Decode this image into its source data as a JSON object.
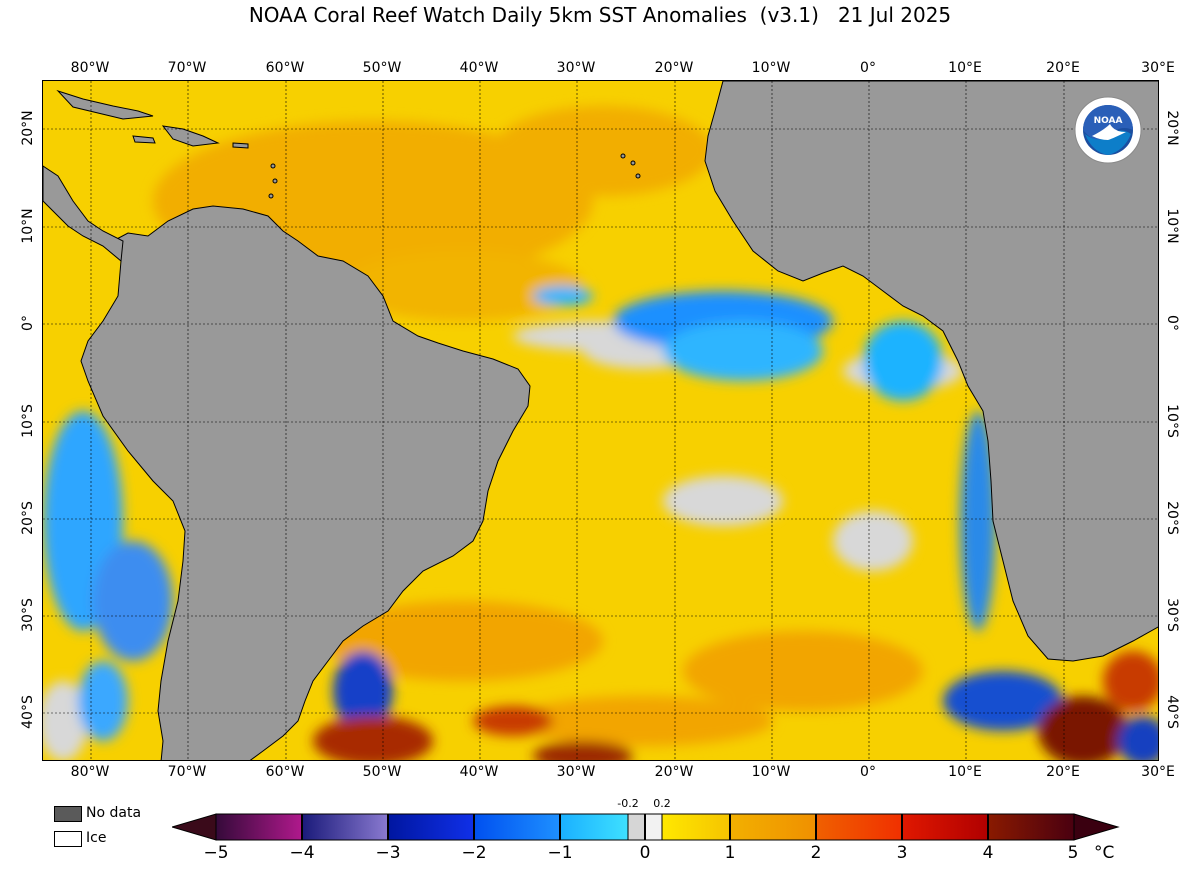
{
  "title": "NOAA Coral Reef Watch Daily 5km SST Anomalies  (v3.1)   21 Jul 2025",
  "longitude_labels": [
    "80°W",
    "70°W",
    "60°W",
    "50°W",
    "40°W",
    "30°W",
    "20°W",
    "10°W",
    "0°",
    "10°E",
    "20°E",
    "30°E"
  ],
  "latitude_labels": [
    "20°N",
    "10°N",
    "0°",
    "10°S",
    "20°S",
    "30°S",
    "40°S"
  ],
  "legend": {
    "no_data_label": "No data",
    "ice_label": "Ice",
    "no_data_color": "#5a5a5a",
    "ice_color": "#ffffff"
  },
  "colorbar": {
    "ticks": [
      "−5",
      "−4",
      "−3",
      "−2",
      "−1",
      "0",
      "1",
      "2",
      "3",
      "4",
      "5"
    ],
    "small_labels": [
      "-0.2",
      "0.2"
    ],
    "unit": "°C"
  },
  "colors": {
    "land": "#999999",
    "sea_warm": "#f7d000",
    "sea_moderate": "#f2a900",
    "sea_neutral": "#d6d6d6",
    "sea_cool": "#1fb3ff",
    "sea_cold": "#0044cc",
    "sea_hot": "#8b1a00"
  },
  "logo_text": "NOAA"
}
